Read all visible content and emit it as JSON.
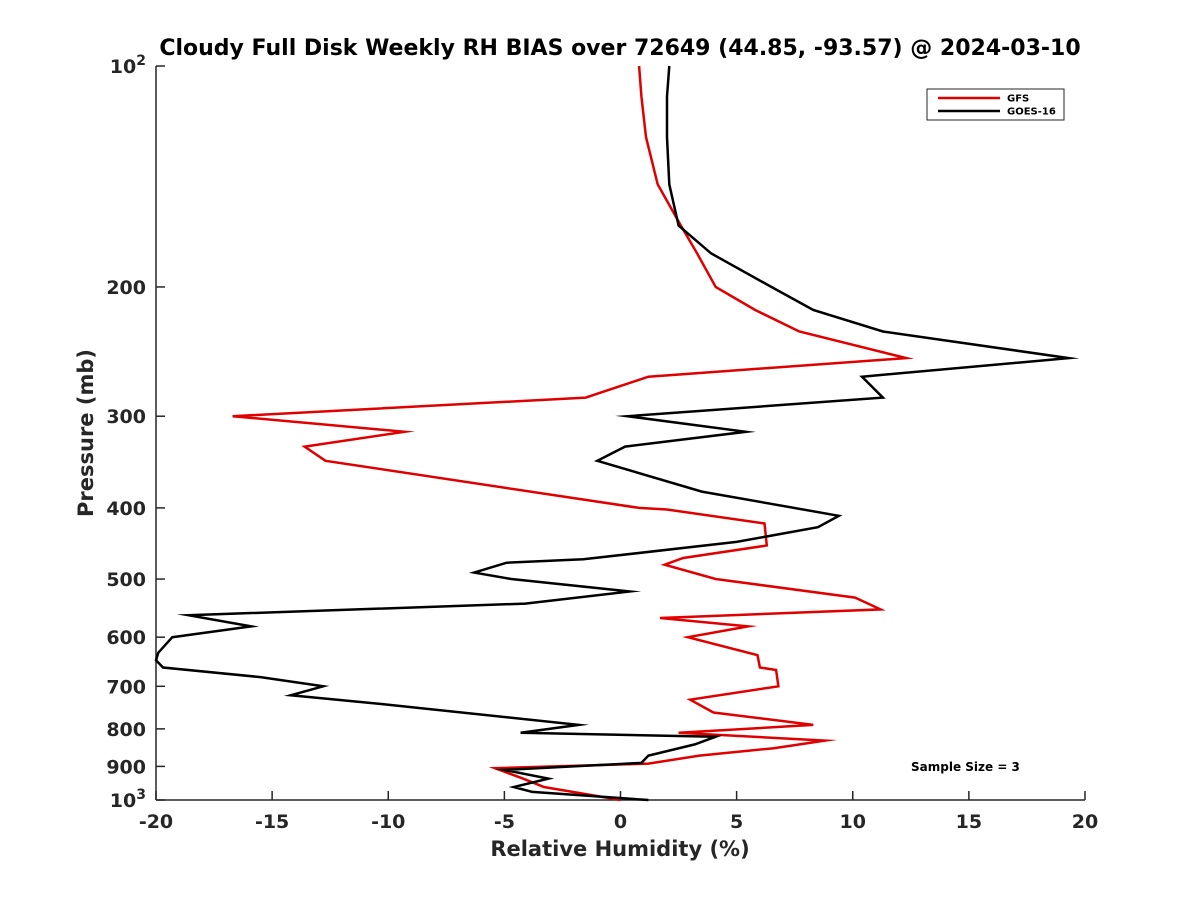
{
  "chart_data": {
    "type": "line",
    "title": "Cloudy Full Disk Weekly RH BIAS over 72649 (44.85, -93.57) @ 2024-03-10",
    "xlabel": "Relative Humidity (%)",
    "ylabel": "Pressure (mb)",
    "xlim": [
      -20,
      20
    ],
    "ylim": [
      100,
      1000
    ],
    "y_scale": "log",
    "y_reversed": true,
    "grid": false,
    "legend_position": "top-right",
    "x_ticks": [
      "-20",
      "-15",
      "-10",
      "-5",
      "0",
      "5",
      "10",
      "15",
      "20"
    ],
    "y_ticks": [
      {
        "value": 100,
        "base": "10",
        "exp": "2"
      },
      {
        "value": 200,
        "label": "200"
      },
      {
        "value": 300,
        "label": "300"
      },
      {
        "value": 400,
        "label": "400"
      },
      {
        "value": 500,
        "label": "500"
      },
      {
        "value": 600,
        "label": "600"
      },
      {
        "value": 700,
        "label": "700"
      },
      {
        "value": 800,
        "label": "800"
      },
      {
        "value": 900,
        "label": "900"
      },
      {
        "value": 1000,
        "base": "10",
        "exp": "3"
      }
    ],
    "series": [
      {
        "name": "GFS",
        "color": "#e00000",
        "points": [
          [
            0.8,
            100
          ],
          [
            0.9,
            110
          ],
          [
            1.1,
            125
          ],
          [
            1.6,
            145
          ],
          [
            2.6,
            165
          ],
          [
            3.3,
            180
          ],
          [
            4.1,
            200
          ],
          [
            5.8,
            215
          ],
          [
            7.7,
            230
          ],
          [
            12.3,
            250
          ],
          [
            1.2,
            265
          ],
          [
            -1.5,
            283
          ],
          [
            -16.7,
            300
          ],
          [
            -9.3,
            315
          ],
          [
            -13.6,
            330
          ],
          [
            -12.7,
            345
          ],
          [
            0.8,
            400
          ],
          [
            2.0,
            402
          ],
          [
            6.2,
            420
          ],
          [
            6.3,
            450
          ],
          [
            2.7,
            468
          ],
          [
            1.9,
            478
          ],
          [
            4.1,
            500
          ],
          [
            10.1,
            530
          ],
          [
            11.2,
            550
          ],
          [
            1.7,
            565
          ],
          [
            5.5,
            580
          ],
          [
            2.9,
            600
          ],
          [
            5.9,
            635
          ],
          [
            6.0,
            660
          ],
          [
            6.7,
            665
          ],
          [
            6.8,
            700
          ],
          [
            3.0,
            730
          ],
          [
            4.0,
            760
          ],
          [
            8.3,
            790
          ],
          [
            2.5,
            810
          ],
          [
            8.8,
            830
          ],
          [
            6.6,
            850
          ],
          [
            3.4,
            870
          ],
          [
            1.2,
            892
          ],
          [
            -5.4,
            905
          ],
          [
            -4.2,
            935
          ],
          [
            -3.3,
            960
          ],
          [
            0,
            1000
          ]
        ]
      },
      {
        "name": "GOES-16",
        "color": "#000000",
        "points": [
          [
            2.1,
            100
          ],
          [
            2.0,
            110
          ],
          [
            2.0,
            125
          ],
          [
            2.1,
            145
          ],
          [
            2.5,
            165
          ],
          [
            3.9,
            180
          ],
          [
            6.5,
            200
          ],
          [
            8.3,
            215
          ],
          [
            11.3,
            230
          ],
          [
            19.3,
            250
          ],
          [
            10.4,
            265
          ],
          [
            11.3,
            283
          ],
          [
            0.3,
            300
          ],
          [
            5.4,
            315
          ],
          [
            0.2,
            330
          ],
          [
            -1.0,
            345
          ],
          [
            3.5,
            380
          ],
          [
            9.4,
            410
          ],
          [
            8.5,
            425
          ],
          [
            5.0,
            445
          ],
          [
            -1.6,
            470
          ],
          [
            -4.9,
            475
          ],
          [
            -6.3,
            490
          ],
          [
            -4.7,
            500
          ],
          [
            0.4,
            520
          ],
          [
            -4.1,
            540
          ],
          [
            -18.6,
            560
          ],
          [
            -15.9,
            580
          ],
          [
            -19.3,
            600
          ],
          [
            -19.9,
            630
          ],
          [
            -20.0,
            645
          ],
          [
            -19.7,
            660
          ],
          [
            -15.5,
            680
          ],
          [
            -12.8,
            700
          ],
          [
            -14.2,
            720
          ],
          [
            -10.3,
            740
          ],
          [
            -1.8,
            790
          ],
          [
            -4.3,
            810
          ],
          [
            4.1,
            820
          ],
          [
            3.2,
            840
          ],
          [
            1.2,
            870
          ],
          [
            0.9,
            890
          ],
          [
            -5.0,
            910
          ],
          [
            -3.1,
            935
          ],
          [
            -4.6,
            960
          ],
          [
            -3.8,
            975
          ],
          [
            1.2,
            1000
          ]
        ]
      }
    ],
    "annotation": "Sample Size = 3"
  }
}
